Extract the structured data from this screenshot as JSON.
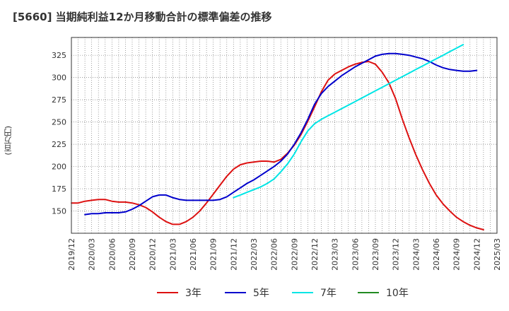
{
  "chart_data": {
    "type": "line",
    "title": "[5660]  当期純利益12か月移動合計の標準偏差の推移",
    "ylabel": "(百万円)",
    "xlabel": "",
    "ylim": [
      125,
      345
    ],
    "yticks": [
      150,
      175,
      200,
      225,
      250,
      275,
      300,
      325
    ],
    "x_tick_labels": [
      "2019/12",
      "2020/03",
      "2020/06",
      "2020/09",
      "2020/12",
      "2021/03",
      "2021/06",
      "2021/09",
      "2021/12",
      "2022/03",
      "2022/06",
      "2022/09",
      "2022/12",
      "2023/03",
      "2023/06",
      "2023/09",
      "2023/12",
      "2024/03",
      "2024/06",
      "2024/09",
      "2024/12",
      "2025/03"
    ],
    "grid": true,
    "legend_position": "bottom",
    "series": [
      {
        "name": "3年",
        "color": "#dd1111",
        "values": [
          [
            0,
            159
          ],
          [
            1,
            159
          ],
          [
            2,
            161
          ],
          [
            3,
            162
          ],
          [
            4,
            163
          ],
          [
            5,
            163
          ],
          [
            6,
            161
          ],
          [
            7,
            160
          ],
          [
            8,
            160
          ],
          [
            9,
            159
          ],
          [
            10,
            157
          ],
          [
            11,
            154
          ],
          [
            12,
            149
          ],
          [
            13,
            143
          ],
          [
            14,
            138
          ],
          [
            15,
            135
          ],
          [
            16,
            135
          ],
          [
            17,
            138
          ],
          [
            18,
            143
          ],
          [
            19,
            150
          ],
          [
            20,
            159
          ],
          [
            21,
            169
          ],
          [
            22,
            179
          ],
          [
            23,
            189
          ],
          [
            24,
            197
          ],
          [
            25,
            202
          ],
          [
            26,
            204
          ],
          [
            27,
            205
          ],
          [
            28,
            206
          ],
          [
            29,
            206
          ],
          [
            30,
            205
          ],
          [
            31,
            208
          ],
          [
            32,
            215
          ],
          [
            33,
            224
          ],
          [
            34,
            236
          ],
          [
            35,
            251
          ],
          [
            36,
            267
          ],
          [
            37,
            284
          ],
          [
            38,
            297
          ],
          [
            39,
            304
          ],
          [
            40,
            308
          ],
          [
            41,
            312
          ],
          [
            42,
            315
          ],
          [
            43,
            317
          ],
          [
            44,
            318
          ],
          [
            45,
            315
          ],
          [
            46,
            306
          ],
          [
            47,
            294
          ],
          [
            48,
            276
          ],
          [
            49,
            253
          ],
          [
            50,
            232
          ],
          [
            51,
            213
          ],
          [
            52,
            196
          ],
          [
            53,
            181
          ],
          [
            54,
            168
          ],
          [
            55,
            158
          ],
          [
            56,
            150
          ],
          [
            57,
            143
          ],
          [
            58,
            138
          ],
          [
            59,
            134
          ],
          [
            60,
            131
          ],
          [
            61,
            129
          ]
        ]
      },
      {
        "name": "5年",
        "color": "#0000cc",
        "values": [
          [
            2,
            146
          ],
          [
            3,
            147
          ],
          [
            4,
            147
          ],
          [
            5,
            148
          ],
          [
            6,
            148
          ],
          [
            7,
            148
          ],
          [
            8,
            149
          ],
          [
            9,
            152
          ],
          [
            10,
            156
          ],
          [
            11,
            161
          ],
          [
            12,
            166
          ],
          [
            13,
            168
          ],
          [
            14,
            168
          ],
          [
            15,
            165
          ],
          [
            16,
            163
          ],
          [
            17,
            162
          ],
          [
            18,
            162
          ],
          [
            19,
            162
          ],
          [
            20,
            162
          ],
          [
            21,
            162
          ],
          [
            22,
            163
          ],
          [
            23,
            166
          ],
          [
            24,
            171
          ],
          [
            25,
            176
          ],
          [
            26,
            181
          ],
          [
            27,
            185
          ],
          [
            28,
            190
          ],
          [
            29,
            195
          ],
          [
            30,
            200
          ],
          [
            31,
            206
          ],
          [
            32,
            214
          ],
          [
            33,
            225
          ],
          [
            34,
            238
          ],
          [
            35,
            253
          ],
          [
            36,
            270
          ],
          [
            37,
            282
          ],
          [
            38,
            290
          ],
          [
            39,
            296
          ],
          [
            40,
            302
          ],
          [
            41,
            307
          ],
          [
            42,
            312
          ],
          [
            43,
            316
          ],
          [
            44,
            320
          ],
          [
            45,
            324
          ],
          [
            46,
            326
          ],
          [
            47,
            327
          ],
          [
            48,
            327
          ],
          [
            49,
            326
          ],
          [
            50,
            325
          ],
          [
            51,
            323
          ],
          [
            52,
            321
          ],
          [
            53,
            318
          ],
          [
            54,
            314
          ],
          [
            55,
            311
          ],
          [
            56,
            309
          ],
          [
            57,
            308
          ],
          [
            58,
            307
          ],
          [
            59,
            307
          ],
          [
            60,
            308
          ]
        ]
      },
      {
        "name": "7年",
        "color": "#00e5e5",
        "values": [
          [
            24,
            165
          ],
          [
            25,
            168
          ],
          [
            26,
            171
          ],
          [
            27,
            174
          ],
          [
            28,
            177
          ],
          [
            29,
            181
          ],
          [
            30,
            186
          ],
          [
            31,
            194
          ],
          [
            32,
            203
          ],
          [
            33,
            214
          ],
          [
            34,
            228
          ],
          [
            35,
            240
          ],
          [
            36,
            248
          ],
          [
            37,
            253
          ],
          [
            38,
            257
          ],
          [
            39,
            261
          ],
          [
            40,
            265
          ],
          [
            41,
            269
          ],
          [
            42,
            273
          ],
          [
            43,
            277
          ],
          [
            44,
            281
          ],
          [
            45,
            285
          ],
          [
            46,
            289
          ],
          [
            47,
            293
          ],
          [
            48,
            297
          ],
          [
            49,
            301
          ],
          [
            50,
            305
          ],
          [
            51,
            309
          ],
          [
            52,
            313
          ],
          [
            53,
            317
          ],
          [
            54,
            321
          ],
          [
            55,
            325
          ],
          [
            56,
            329
          ],
          [
            57,
            333
          ],
          [
            58,
            337
          ]
        ]
      },
      {
        "name": "10年",
        "color": "#228b22",
        "values": []
      }
    ]
  }
}
